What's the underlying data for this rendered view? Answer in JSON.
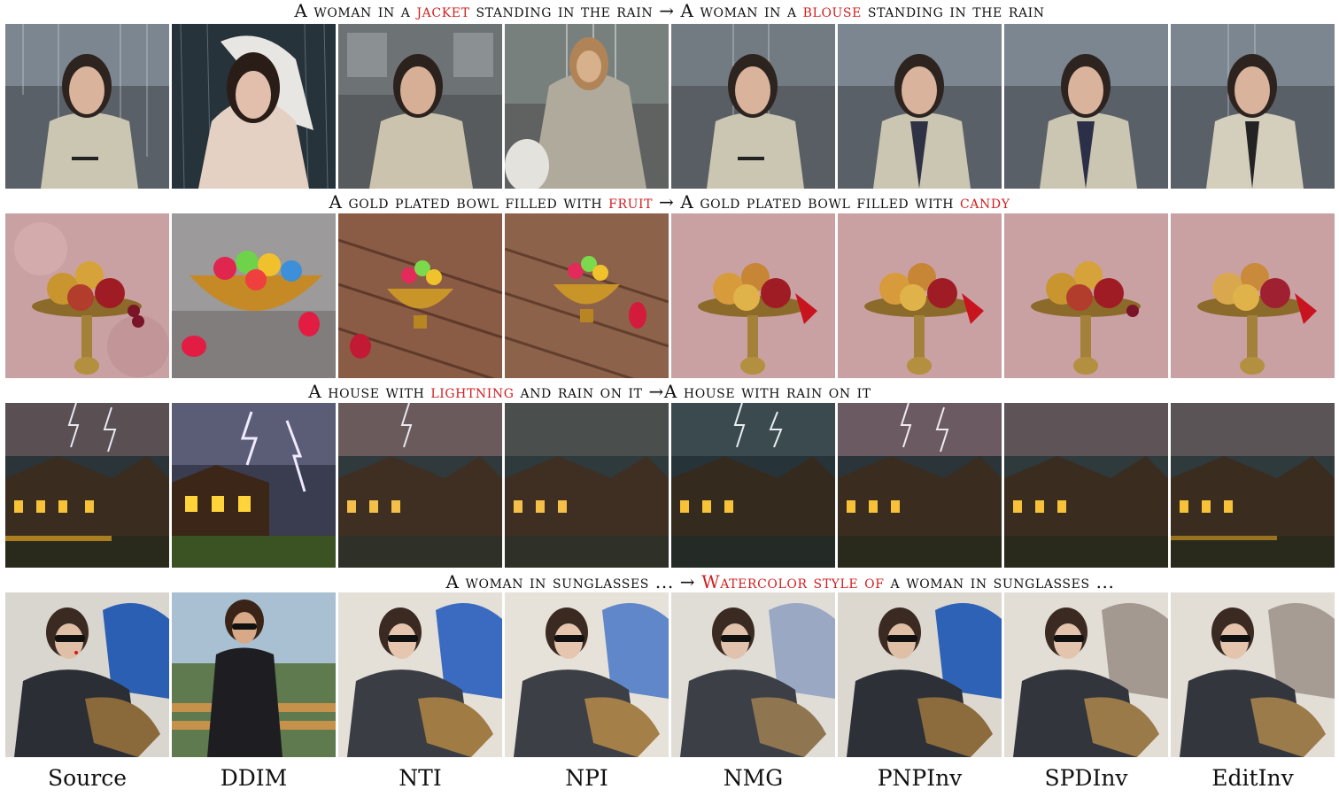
{
  "captions": [
    {
      "a": "A woman in a ",
      "b": "jacket",
      "c": " standing in the rain → A woman in a ",
      "d": "blouse",
      "e": " standing in the rain"
    },
    {
      "a": "A gold plated bowl filled with ",
      "b": "fruit",
      "c": " → A gold plated bowl filled with ",
      "d": "candy",
      "e": ""
    },
    {
      "a": "A house with ",
      "b": "lightning",
      "c": " and rain on it →A house with rain on it",
      "d": "",
      "e": ""
    },
    {
      "a": "A woman in sunglasses ... → ",
      "b": "Watercolor style of",
      "c": " a woman in sunglasses ...",
      "d": "",
      "e": ""
    }
  ],
  "methods": [
    "Source",
    "DDIM",
    "NTI",
    "NPI",
    "NMG",
    "PNPInv",
    "SPDInv",
    "EditInv"
  ],
  "colors": {
    "highlight": "#d21f1f"
  },
  "icons": [
    "woman-rain-image",
    "fruit-bowl-image",
    "house-lightning-image",
    "woman-sunglasses-image"
  ]
}
